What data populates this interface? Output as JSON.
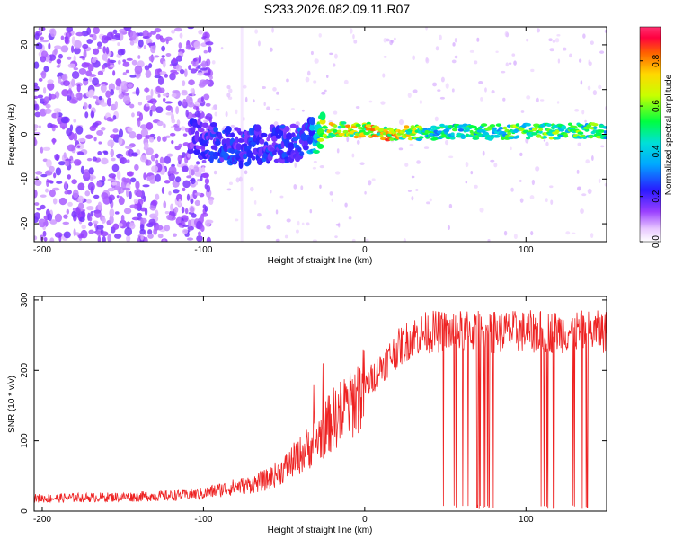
{
  "chart_data": [
    {
      "type": "heatmap",
      "title": "S233.2026.082.09.11.R07",
      "xlabel": "Height of straight line (km)",
      "ylabel": "Frequency (Hz)",
      "xlim": [
        -205,
        150
      ],
      "ylim": [
        -24,
        24
      ],
      "xticks": [
        -200,
        -100,
        0,
        100
      ],
      "yticks": [
        -20,
        -10,
        0,
        10,
        20
      ],
      "colorbar": {
        "label": "Normalized spectral amplitude",
        "range": [
          0,
          0.95
        ],
        "ticks": [
          "0.0",
          "0.2",
          "0.4",
          "0.6",
          "0.8"
        ]
      },
      "ridge": {
        "description_points_x": [
          -105,
          -90,
          -75,
          -60,
          -45,
          -35,
          -28,
          -20,
          0,
          20,
          40,
          60,
          80,
          100,
          120,
          150
        ],
        "frequency": [
          -1,
          -2,
          -3,
          -2,
          -2,
          -1,
          0,
          1,
          1,
          0,
          0.5,
          0.5,
          0.5,
          0.6,
          0.7,
          0.8
        ],
        "peak_amplitude": [
          0.25,
          0.3,
          0.3,
          0.3,
          0.3,
          0.35,
          0.7,
          0.85,
          0.9,
          0.95,
          0.6,
          0.6,
          0.65,
          0.7,
          0.7,
          0.65
        ]
      }
    },
    {
      "type": "line",
      "xlabel": "Height of straight line (km)",
      "ylabel": "SNR (10 * v/v)",
      "xlim": [
        -205,
        150
      ],
      "ylim": [
        0,
        305
      ],
      "xticks": [
        -200,
        -100,
        0,
        100
      ],
      "yticks": [
        0,
        100,
        200,
        300
      ],
      "series": [
        {
          "name": "SNR",
          "color": "#ee2222",
          "x": [
            -205,
            -180,
            -150,
            -120,
            -100,
            -90,
            -80,
            -70,
            -60,
            -50,
            -40,
            -30,
            -20,
            -10,
            0,
            10,
            20,
            30,
            40,
            50,
            60,
            70,
            80,
            90,
            100,
            110,
            120,
            130,
            140,
            150
          ],
          "y": [
            18,
            19,
            20,
            22,
            25,
            30,
            35,
            38,
            45,
            60,
            80,
            100,
            130,
            150,
            175,
            205,
            230,
            248,
            255,
            255,
            255,
            255,
            255,
            255,
            255,
            255,
            255,
            255,
            255,
            255
          ],
          "dropout_ranges": [
            [
              48,
              80
            ],
            [
              105,
              150
            ]
          ]
        }
      ]
    }
  ],
  "colors": {
    "snr_line": "#ee2222",
    "axes": "#000000"
  }
}
